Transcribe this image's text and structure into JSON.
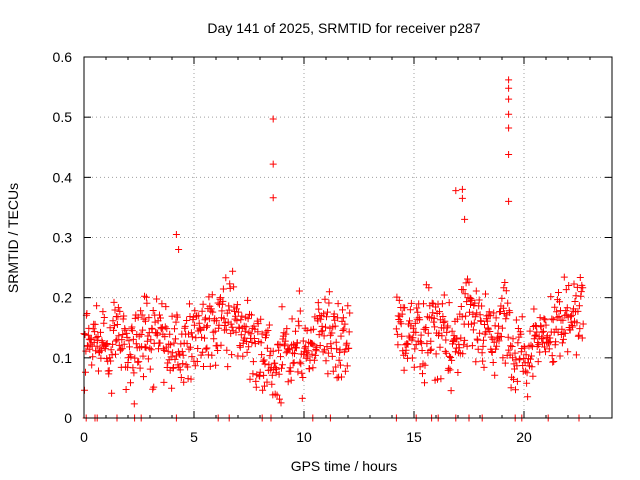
{
  "chart_data": {
    "type": "scatter",
    "title": "Day 141 of 2025, SRMTID for receiver p287",
    "xlabel": "GPS time / hours",
    "ylabel": "SRMTID / TECUs",
    "xlim": [
      0,
      24
    ],
    "ylim": [
      0,
      0.6
    ],
    "xticks": [
      "0",
      "5",
      "10",
      "15",
      "20"
    ],
    "xtick_values": [
      0,
      5,
      10,
      15,
      20
    ],
    "yticks": [
      "0",
      "0.1",
      "0.2",
      "0.3",
      "0.4",
      "0.5",
      "0.6"
    ],
    "ytick_values": [
      0,
      0.1,
      0.2,
      0.3,
      0.4,
      0.5,
      0.6
    ],
    "grid": true,
    "marker": "+",
    "color": "#ff0000",
    "series": [
      {
        "name": "SRMTID",
        "segments": [
          {
            "x_start": 0.0,
            "x_end": 12.1,
            "baseline": 0.13,
            "spread": 0.06
          },
          {
            "x_start": 14.2,
            "x_end": 22.7,
            "baseline": 0.15,
            "spread": 0.06
          }
        ],
        "spikes": [
          {
            "x": 8.6,
            "y": 0.497
          },
          {
            "x": 8.6,
            "y": 0.422
          },
          {
            "x": 8.6,
            "y": 0.366
          },
          {
            "x": 19.3,
            "y": 0.562
          },
          {
            "x": 19.3,
            "y": 0.548
          },
          {
            "x": 19.3,
            "y": 0.53
          },
          {
            "x": 19.3,
            "y": 0.505
          },
          {
            "x": 19.3,
            "y": 0.482
          },
          {
            "x": 19.3,
            "y": 0.438
          },
          {
            "x": 19.3,
            "y": 0.36
          },
          {
            "x": 16.9,
            "y": 0.378
          },
          {
            "x": 17.2,
            "y": 0.38
          },
          {
            "x": 17.2,
            "y": 0.365
          },
          {
            "x": 17.3,
            "y": 0.33
          },
          {
            "x": 4.2,
            "y": 0.305
          },
          {
            "x": 4.3,
            "y": 0.28
          }
        ],
        "zero_marks": [
          0.1,
          0.5,
          0.6,
          1.5,
          2.3,
          2.6,
          4.2,
          6.1,
          6.6,
          8.1,
          8.5,
          10.4,
          11.2,
          14.2,
          15.1,
          15.8,
          16.1,
          16.9,
          17.5,
          18.1,
          19.6,
          19.9,
          21.1,
          22.5
        ]
      }
    ]
  }
}
